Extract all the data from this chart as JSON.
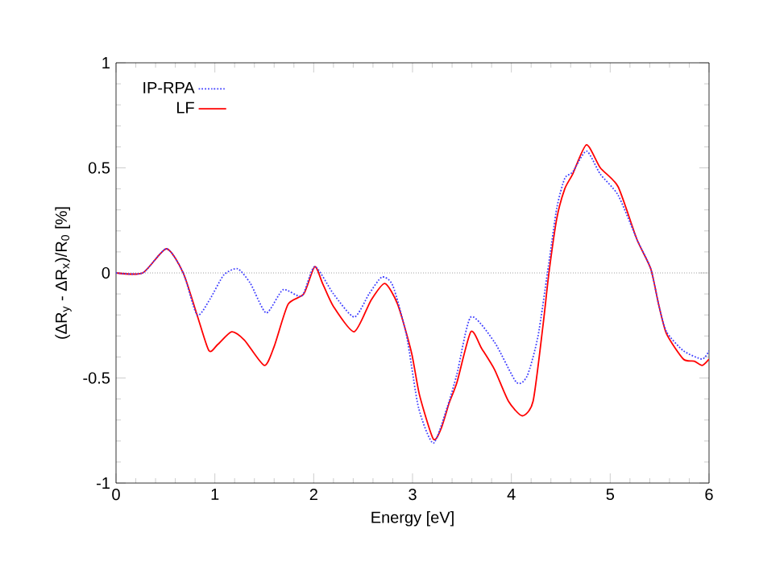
{
  "chart_data": {
    "type": "line",
    "xlabel": "Energy [eV]",
    "ylabel": "(ΔR$_{y}$ - ΔR$_{x}$)/R$_{0}$ [%]",
    "xlim": [
      0,
      6
    ],
    "ylim": [
      -1,
      1
    ],
    "xticks": [
      0,
      1,
      2,
      3,
      4,
      5,
      6
    ],
    "yticks": [
      -1,
      -0.5,
      0,
      0.5,
      1
    ],
    "legend": "top left",
    "ref_lines": [
      {
        "axis": "y",
        "value": 0,
        "color": "#a0a0a0",
        "line_style": "dotted"
      }
    ],
    "series": [
      {
        "name": "IP-RPA",
        "color": "#4040ff",
        "line_style": "dotted",
        "x": [
          0,
          0.27,
          0.51,
          0.68,
          0.82,
          0.95,
          1.09,
          1.23,
          1.36,
          1.52,
          1.69,
          1.88,
          2.01,
          2.2,
          2.41,
          2.56,
          2.69,
          2.8,
          2.94,
          3.06,
          3.21,
          3.35,
          3.45,
          3.59,
          3.83,
          4.05,
          4.16,
          4.27,
          4.38,
          4.46,
          4.54,
          4.62,
          4.76,
          4.9,
          5.08,
          5.27,
          5.41,
          5.49,
          5.57,
          5.74,
          5.93,
          6.0
        ],
        "values": [
          0,
          0,
          0.115,
          0,
          -0.2,
          -0.125,
          -0.01,
          0.02,
          -0.05,
          -0.19,
          -0.08,
          -0.11,
          0.03,
          -0.1,
          -0.21,
          -0.1,
          -0.02,
          -0.06,
          -0.3,
          -0.64,
          -0.81,
          -0.64,
          -0.48,
          -0.21,
          -0.33,
          -0.52,
          -0.49,
          -0.3,
          0.05,
          0.31,
          0.45,
          0.48,
          0.58,
          0.47,
          0.37,
          0.16,
          0.02,
          -0.15,
          -0.28,
          -0.37,
          -0.41,
          -0.37
        ]
      },
      {
        "name": "LF",
        "color": "#ff0000",
        "line_style": "solid",
        "x": [
          0,
          0.27,
          0.51,
          0.68,
          0.82,
          0.94,
          1.03,
          1.17,
          1.3,
          1.5,
          1.6,
          1.74,
          1.9,
          2.01,
          2.09,
          2.2,
          2.41,
          2.58,
          2.72,
          2.85,
          2.99,
          3.07,
          3.21,
          3.29,
          3.37,
          3.45,
          3.59,
          3.7,
          3.83,
          3.97,
          4.11,
          4.22,
          4.32,
          4.38,
          4.46,
          4.54,
          4.62,
          4.76,
          4.9,
          5.08,
          5.27,
          5.41,
          5.49,
          5.57,
          5.74,
          5.85,
          5.93,
          6.0
        ],
        "values": [
          0,
          0,
          0.115,
          0,
          -0.2,
          -0.37,
          -0.34,
          -0.28,
          -0.32,
          -0.44,
          -0.35,
          -0.15,
          -0.1,
          0.03,
          -0.05,
          -0.16,
          -0.28,
          -0.13,
          -0.05,
          -0.15,
          -0.38,
          -0.58,
          -0.79,
          -0.74,
          -0.62,
          -0.52,
          -0.28,
          -0.36,
          -0.46,
          -0.61,
          -0.68,
          -0.61,
          -0.25,
          0.0,
          0.26,
          0.4,
          0.47,
          0.61,
          0.5,
          0.41,
          0.16,
          0.02,
          -0.15,
          -0.29,
          -0.41,
          -0.42,
          -0.44,
          -0.41
        ]
      }
    ]
  }
}
